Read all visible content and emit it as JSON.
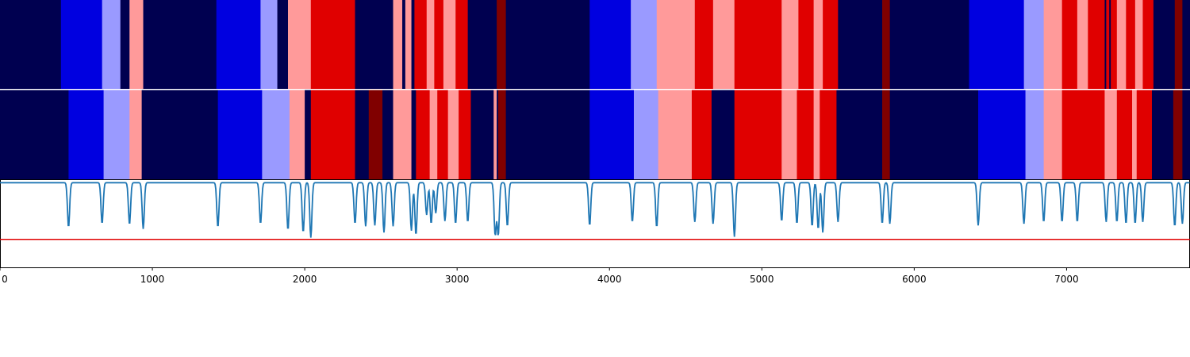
{
  "chart_data": {
    "type": "heatmap",
    "x_range": [
      0,
      7810
    ],
    "x_ticks": [
      0,
      1000,
      2000,
      3000,
      4000,
      5000,
      6000,
      7000
    ],
    "x_tick_labels": [
      "0",
      "1000",
      "2000",
      "3000",
      "4000",
      "5000",
      "6000",
      "7000"
    ],
    "grid": false,
    "legend": "none",
    "state_colors": {
      "0": "#000050",
      "1": "#0000e0",
      "2": "#9a9aff",
      "3": "#ff9a9a",
      "4": "#e00000",
      "5": "#800000"
    },
    "tracks": [
      {
        "segments": [
          [
            0,
            400,
            0
          ],
          [
            400,
            670,
            1
          ],
          [
            670,
            790,
            2
          ],
          [
            790,
            850,
            0
          ],
          [
            850,
            940,
            3
          ],
          [
            940,
            1420,
            0
          ],
          [
            1420,
            1710,
            1
          ],
          [
            1710,
            1820,
            2
          ],
          [
            1820,
            1890,
            0
          ],
          [
            1890,
            2040,
            3
          ],
          [
            2040,
            2330,
            4
          ],
          [
            2330,
            2580,
            0
          ],
          [
            2580,
            2640,
            3
          ],
          [
            2640,
            2660,
            0
          ],
          [
            2660,
            2700,
            3
          ],
          [
            2700,
            2720,
            0
          ],
          [
            2720,
            2800,
            4
          ],
          [
            2800,
            2850,
            3
          ],
          [
            2850,
            2910,
            4
          ],
          [
            2910,
            2990,
            3
          ],
          [
            2990,
            3070,
            4
          ],
          [
            3070,
            3260,
            0
          ],
          [
            3260,
            3320,
            5
          ],
          [
            3320,
            3870,
            0
          ],
          [
            3870,
            4140,
            1
          ],
          [
            4140,
            4310,
            2
          ],
          [
            4310,
            4560,
            3
          ],
          [
            4560,
            4680,
            4
          ],
          [
            4680,
            4820,
            3
          ],
          [
            4820,
            5130,
            4
          ],
          [
            5130,
            5240,
            3
          ],
          [
            5240,
            5340,
            4
          ],
          [
            5340,
            5400,
            3
          ],
          [
            5400,
            5500,
            4
          ],
          [
            5500,
            5790,
            0
          ],
          [
            5790,
            5840,
            5
          ],
          [
            5840,
            6360,
            0
          ],
          [
            6360,
            6720,
            1
          ],
          [
            6720,
            6850,
            2
          ],
          [
            6850,
            6970,
            3
          ],
          [
            6970,
            7070,
            4
          ],
          [
            7070,
            7140,
            3
          ],
          [
            7140,
            7250,
            4
          ],
          [
            7250,
            7260,
            0
          ],
          [
            7260,
            7280,
            4
          ],
          [
            7280,
            7290,
            0
          ],
          [
            7290,
            7330,
            4
          ],
          [
            7330,
            7390,
            3
          ],
          [
            7390,
            7450,
            4
          ],
          [
            7450,
            7500,
            3
          ],
          [
            7500,
            7570,
            4
          ],
          [
            7570,
            7710,
            0
          ],
          [
            7710,
            7760,
            5
          ],
          [
            7760,
            7810,
            0
          ]
        ]
      },
      {
        "segments": [
          [
            0,
            450,
            0
          ],
          [
            450,
            680,
            1
          ],
          [
            680,
            850,
            2
          ],
          [
            850,
            930,
            3
          ],
          [
            930,
            1430,
            0
          ],
          [
            1430,
            1720,
            1
          ],
          [
            1720,
            1900,
            2
          ],
          [
            1900,
            2000,
            3
          ],
          [
            2000,
            2040,
            0
          ],
          [
            2040,
            2330,
            4
          ],
          [
            2330,
            2420,
            0
          ],
          [
            2420,
            2510,
            5
          ],
          [
            2510,
            2580,
            0
          ],
          [
            2580,
            2700,
            3
          ],
          [
            2700,
            2730,
            0
          ],
          [
            2730,
            2820,
            4
          ],
          [
            2820,
            2870,
            3
          ],
          [
            2870,
            2940,
            4
          ],
          [
            2940,
            3010,
            3
          ],
          [
            3010,
            3090,
            4
          ],
          [
            3090,
            3240,
            0
          ],
          [
            3240,
            3260,
            3
          ],
          [
            3260,
            3270,
            0
          ],
          [
            3270,
            3320,
            5
          ],
          [
            3320,
            3870,
            0
          ],
          [
            3870,
            4160,
            1
          ],
          [
            4160,
            4320,
            2
          ],
          [
            4320,
            4540,
            3
          ],
          [
            4540,
            4670,
            4
          ],
          [
            4670,
            4820,
            0
          ],
          [
            4820,
            5130,
            4
          ],
          [
            5130,
            5230,
            3
          ],
          [
            5230,
            5340,
            4
          ],
          [
            5340,
            5380,
            3
          ],
          [
            5380,
            5490,
            4
          ],
          [
            5490,
            5790,
            0
          ],
          [
            5790,
            5840,
            5
          ],
          [
            5840,
            6420,
            0
          ],
          [
            6420,
            6730,
            1
          ],
          [
            6730,
            6850,
            2
          ],
          [
            6850,
            6970,
            3
          ],
          [
            6970,
            7250,
            4
          ],
          [
            7250,
            7330,
            3
          ],
          [
            7330,
            7430,
            4
          ],
          [
            7430,
            7460,
            3
          ],
          [
            7460,
            7560,
            4
          ],
          [
            7560,
            7700,
            0
          ],
          [
            7700,
            7760,
            5
          ],
          [
            7760,
            7810,
            0
          ]
        ]
      }
    ],
    "line": {
      "y_range": [
        0,
        1
      ],
      "threshold": 0.32,
      "threshold_color": "#e00000",
      "line_color": "#1f77b4",
      "baseline": 0.97,
      "dips": [
        [
          450,
          0.46
        ],
        [
          670,
          0.5
        ],
        [
          850,
          0.49
        ],
        [
          940,
          0.44
        ],
        [
          1430,
          0.46
        ],
        [
          1710,
          0.5
        ],
        [
          1890,
          0.43
        ],
        [
          1990,
          0.4
        ],
        [
          2040,
          0.34
        ],
        [
          2330,
          0.5
        ],
        [
          2400,
          0.47
        ],
        [
          2460,
          0.48
        ],
        [
          2520,
          0.4
        ],
        [
          2580,
          0.47
        ],
        [
          2700,
          0.42
        ],
        [
          2730,
          0.37
        ],
        [
          2800,
          0.6
        ],
        [
          2830,
          0.5
        ],
        [
          2860,
          0.62
        ],
        [
          2920,
          0.53
        ],
        [
          2990,
          0.5
        ],
        [
          3070,
          0.52
        ],
        [
          3250,
          0.37
        ],
        [
          3270,
          0.37
        ],
        [
          3330,
          0.47
        ],
        [
          3870,
          0.48
        ],
        [
          4150,
          0.52
        ],
        [
          4310,
          0.46
        ],
        [
          4560,
          0.52
        ],
        [
          4680,
          0.5
        ],
        [
          4820,
          0.35
        ],
        [
          5130,
          0.53
        ],
        [
          5230,
          0.5
        ],
        [
          5330,
          0.47
        ],
        [
          5370,
          0.44
        ],
        [
          5400,
          0.4
        ],
        [
          5500,
          0.52
        ],
        [
          5790,
          0.5
        ],
        [
          5840,
          0.5
        ],
        [
          6420,
          0.48
        ],
        [
          6720,
          0.5
        ],
        [
          6850,
          0.52
        ],
        [
          6970,
          0.52
        ],
        [
          7070,
          0.52
        ],
        [
          7260,
          0.52
        ],
        [
          7330,
          0.52
        ],
        [
          7390,
          0.5
        ],
        [
          7450,
          0.5
        ],
        [
          7500,
          0.52
        ],
        [
          7710,
          0.47
        ],
        [
          7760,
          0.5
        ]
      ]
    }
  }
}
